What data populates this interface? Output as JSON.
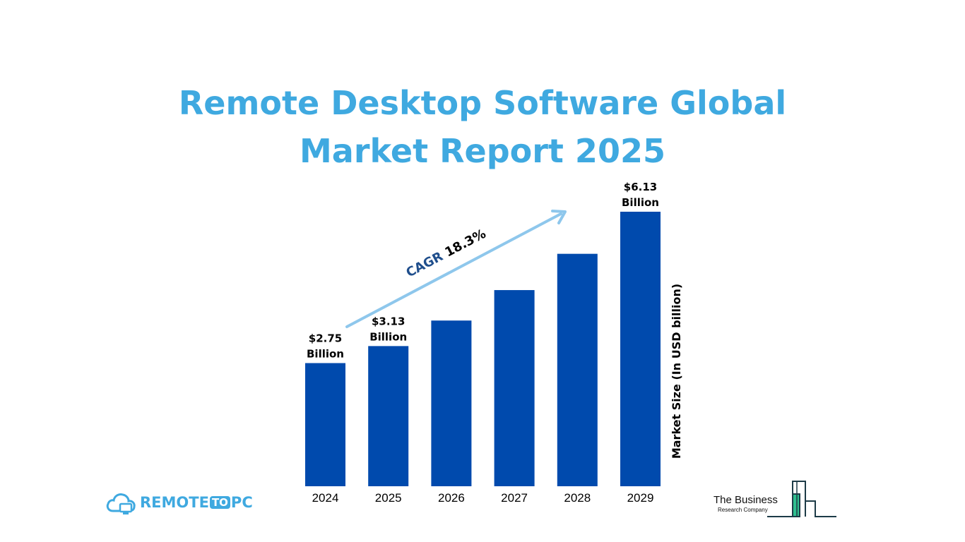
{
  "title_line1": "Remote Desktop Software Global",
  "title_line2": "Market Report 2025",
  "chart_data": {
    "type": "bar",
    "categories": [
      "2024",
      "2025",
      "2026",
      "2027",
      "2028",
      "2029"
    ],
    "values": [
      2.75,
      3.13,
      3.7,
      4.38,
      5.19,
      6.13
    ],
    "value_labels": [
      {
        "category": "2024",
        "line1": "$2.75",
        "line2": "Billion"
      },
      {
        "category": "2025",
        "line1": "$3.13",
        "line2": "Billion"
      },
      {
        "category": "2029",
        "line1": "$6.13",
        "line2": "Billion"
      }
    ],
    "ylabel": "Market Size (In USD billion)",
    "ylim": [
      0,
      6.13
    ],
    "annotation": {
      "prefix": "CAGR",
      "value": "18.3%"
    },
    "bar_color": "#004aad",
    "arrow_color": "#8ec7ec",
    "annotation_prefix_color": "#1f4e8c",
    "grid": false,
    "legend": "none"
  },
  "logos": {
    "left": {
      "part1": "REMOTE",
      "part2": "TO",
      "part3": "PC",
      "icon": "cloud-monitor-icon"
    },
    "right": {
      "line1": "The Business",
      "line2": "Research Company",
      "icon": "buildings-icon"
    }
  },
  "colors": {
    "title": "#3fa9e0",
    "text": "#000000"
  }
}
